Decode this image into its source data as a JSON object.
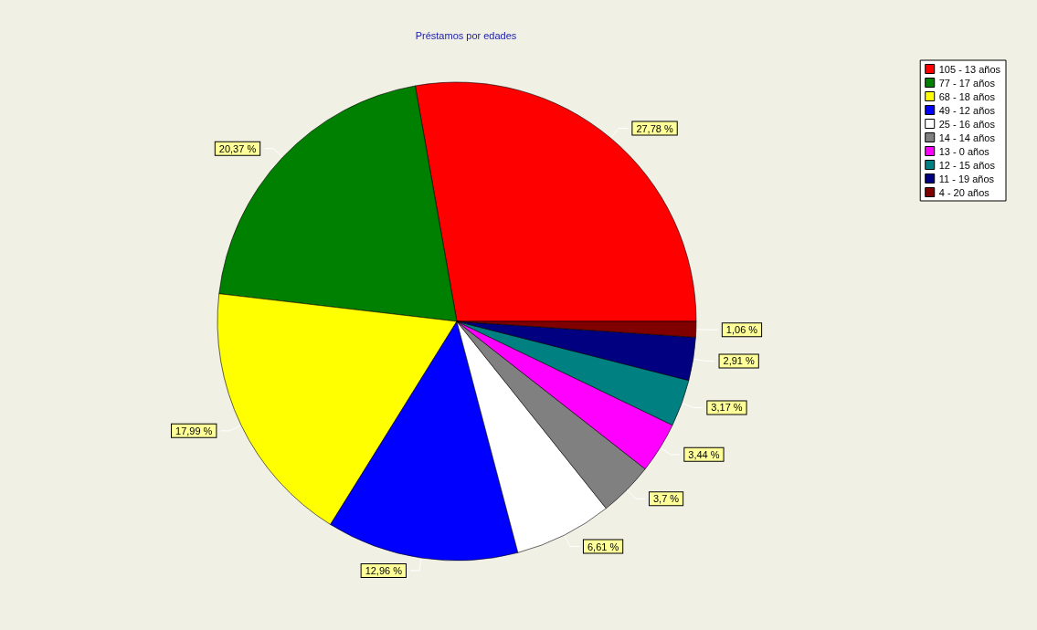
{
  "chart_data": {
    "type": "pie",
    "title": "Préstamos por edades",
    "categories": [
      "105 - 13 años",
      "77 - 17 años",
      "68 - 18 años",
      "49 - 12 años",
      "25 - 16 años",
      "14 - 14 años",
      "13 - 0 años",
      "12 - 15 años",
      "11 - 19 años",
      "4 - 20 años"
    ],
    "values": [
      27.78,
      20.37,
      17.99,
      12.96,
      6.61,
      3.7,
      3.44,
      3.17,
      2.91,
      1.06
    ],
    "colors": [
      "#ff0000",
      "#008000",
      "#ffff00",
      "#0000ff",
      "#ffffff",
      "#808080",
      "#ff00ff",
      "#008080",
      "#000080",
      "#800000"
    ],
    "value_labels": [
      "27,78 %",
      "20,37 %",
      "17,99 %",
      "12,96 %",
      "6,61 %",
      "3,7 %",
      "3,44 %",
      "3,17 %",
      "2,91 %",
      "1,06 %"
    ],
    "legend": "top right"
  }
}
